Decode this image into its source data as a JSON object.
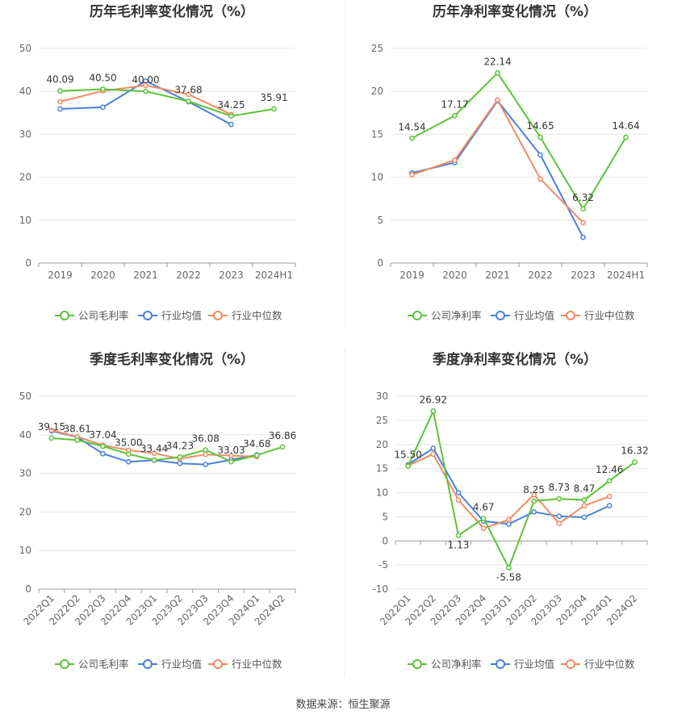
{
  "source": "数据来源：恒生聚源",
  "colors": {
    "company": "#5ac437",
    "industry_avg": "#4a7fe0",
    "industry_median": "#f08a64",
    "grid": "#e6e6e6",
    "axis": "#999999",
    "divider": "#e6e6e6"
  },
  "chart_data": [
    {
      "type": "line",
      "title": "历年毛利率变化情况（%）",
      "categories": [
        "2019",
        "2020",
        "2021",
        "2022",
        "2023",
        "2024H1"
      ],
      "ylim": [
        0,
        50
      ],
      "yticks": [
        0,
        10,
        20,
        30,
        40,
        50
      ],
      "grid": true,
      "legend_position": "bottom",
      "x_rotated": false,
      "series": [
        {
          "name": "公司毛利率",
          "color": "#5ac437",
          "values": [
            40.09,
            40.5,
            40.0,
            37.68,
            34.25,
            35.91
          ],
          "labels": [
            "40.09",
            "40.50",
            "40.00",
            "37.68",
            "34.25",
            "35.91"
          ]
        },
        {
          "name": "行业均值",
          "color": "#4a7fe0",
          "values": [
            35.9,
            36.3,
            42.4,
            37.6,
            32.3,
            null
          ],
          "labels": null
        },
        {
          "name": "行业中位数",
          "color": "#f08a64",
          "values": [
            37.6,
            40.1,
            41.4,
            39.3,
            34.6,
            null
          ],
          "labels": null
        }
      ]
    },
    {
      "type": "line",
      "title": "历年净利率变化情况（%）",
      "categories": [
        "2019",
        "2020",
        "2021",
        "2022",
        "2023",
        "2024H1"
      ],
      "ylim": [
        0,
        25
      ],
      "yticks": [
        0,
        5,
        10,
        15,
        20,
        25
      ],
      "grid": true,
      "legend_position": "bottom",
      "x_rotated": false,
      "series": [
        {
          "name": "公司净利率",
          "color": "#5ac437",
          "values": [
            14.54,
            17.17,
            22.14,
            14.65,
            6.32,
            14.64
          ],
          "labels": [
            "14.54",
            "17.17",
            "22.14",
            "14.65",
            "6.32",
            "14.64"
          ]
        },
        {
          "name": "行业均值",
          "color": "#4a7fe0",
          "values": [
            10.5,
            11.7,
            18.9,
            12.6,
            3.0,
            null
          ],
          "labels": null
        },
        {
          "name": "行业中位数",
          "color": "#f08a64",
          "values": [
            10.3,
            12.0,
            19.0,
            9.8,
            4.7,
            null
          ],
          "labels": null
        }
      ]
    },
    {
      "type": "line",
      "title": "季度毛利率变化情况（%）",
      "categories": [
        "2022Q1",
        "2022Q2",
        "2022Q3",
        "2022Q4",
        "2023Q1",
        "2023Q2",
        "2023Q3",
        "2023Q4",
        "2024Q1",
        "2024Q2"
      ],
      "ylim": [
        0,
        50
      ],
      "yticks": [
        0,
        10,
        20,
        30,
        40,
        50
      ],
      "grid": true,
      "legend_position": "bottom",
      "x_rotated": true,
      "series": [
        {
          "name": "公司毛利率",
          "color": "#5ac437",
          "values": [
            39.15,
            38.61,
            37.04,
            35.0,
            33.44,
            34.23,
            36.08,
            33.03,
            34.68,
            36.86
          ],
          "labels": [
            "39.15",
            "38.61",
            "37.04",
            "35.00",
            "33.44",
            "34.23",
            "36.08",
            "33.03",
            "34.68",
            "36.86"
          ]
        },
        {
          "name": "行业均值",
          "color": "#4a7fe0",
          "values": [
            41.0,
            39.4,
            35.1,
            33.0,
            33.4,
            32.6,
            32.3,
            33.5,
            34.8,
            null
          ],
          "labels": null
        },
        {
          "name": "行业中位数",
          "color": "#f08a64",
          "values": [
            41.2,
            39.5,
            37.3,
            36.0,
            35.2,
            33.8,
            34.9,
            34.6,
            34.3,
            null
          ],
          "labels": null
        }
      ]
    },
    {
      "type": "line",
      "title": "季度净利率变化情况（%）",
      "categories": [
        "2022Q1",
        "2022Q2",
        "2022Q3",
        "2022Q4",
        "2023Q1",
        "2023Q2",
        "2023Q3",
        "2023Q4",
        "2024Q1",
        "2024Q2"
      ],
      "ylim": [
        -10,
        30
      ],
      "yticks": [
        -10,
        -5,
        0,
        5,
        10,
        15,
        20,
        25,
        30
      ],
      "grid": true,
      "legend_position": "bottom",
      "x_rotated": true,
      "series": [
        {
          "name": "公司净利率",
          "color": "#5ac437",
          "values": [
            15.5,
            26.92,
            1.13,
            4.67,
            -5.58,
            8.25,
            8.73,
            8.47,
            12.46,
            16.32
          ],
          "labels": [
            "15.50",
            "26.92",
            "1.13",
            "4.67",
            "-5.58",
            "8.25",
            "8.73",
            "8.47",
            "12.46",
            "16.32"
          ]
        },
        {
          "name": "行业均值",
          "color": "#4a7fe0",
          "values": [
            15.8,
            19.2,
            10.0,
            4.1,
            3.5,
            6.0,
            5.1,
            4.9,
            7.3,
            null
          ],
          "labels": null
        },
        {
          "name": "行业中位数",
          "color": "#f08a64",
          "values": [
            15.6,
            18.0,
            8.5,
            2.6,
            4.4,
            9.6,
            3.6,
            7.3,
            9.2,
            null
          ],
          "labels": null
        }
      ]
    }
  ]
}
